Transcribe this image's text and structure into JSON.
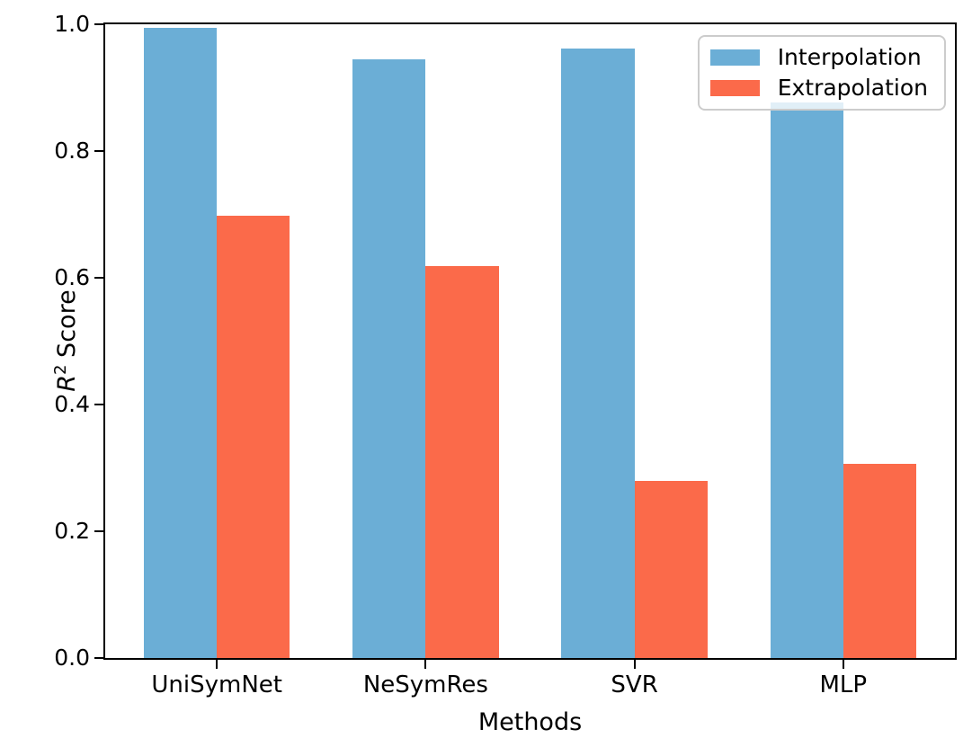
{
  "chart_data": {
    "type": "bar",
    "xlabel": "Methods",
    "ylabel": "R² Score",
    "ylabel_parts": {
      "var": "R",
      "sup": "2",
      "rest": "Score"
    },
    "categories": [
      "UniSymNet",
      "NeSymRes",
      "SVR",
      "MLP"
    ],
    "series": [
      {
        "name": "Interpolation",
        "color": "#6baed6",
        "values": [
          0.995,
          0.945,
          0.962,
          0.876
        ]
      },
      {
        "name": "Extrapolation",
        "color": "#fb6a4a",
        "values": [
          0.698,
          0.618,
          0.28,
          0.307
        ]
      }
    ],
    "ylim": [
      0.0,
      1.0
    ],
    "yticks": [
      "0.0",
      "0.2",
      "0.4",
      "0.6",
      "0.8",
      "1.0"
    ],
    "bar_width": 0.35,
    "legend": {
      "position": "upper right",
      "labels": [
        "Interpolation",
        "Extrapolation"
      ]
    },
    "grid": false,
    "axis_color": "#000000",
    "background_color": "#ffffff"
  }
}
